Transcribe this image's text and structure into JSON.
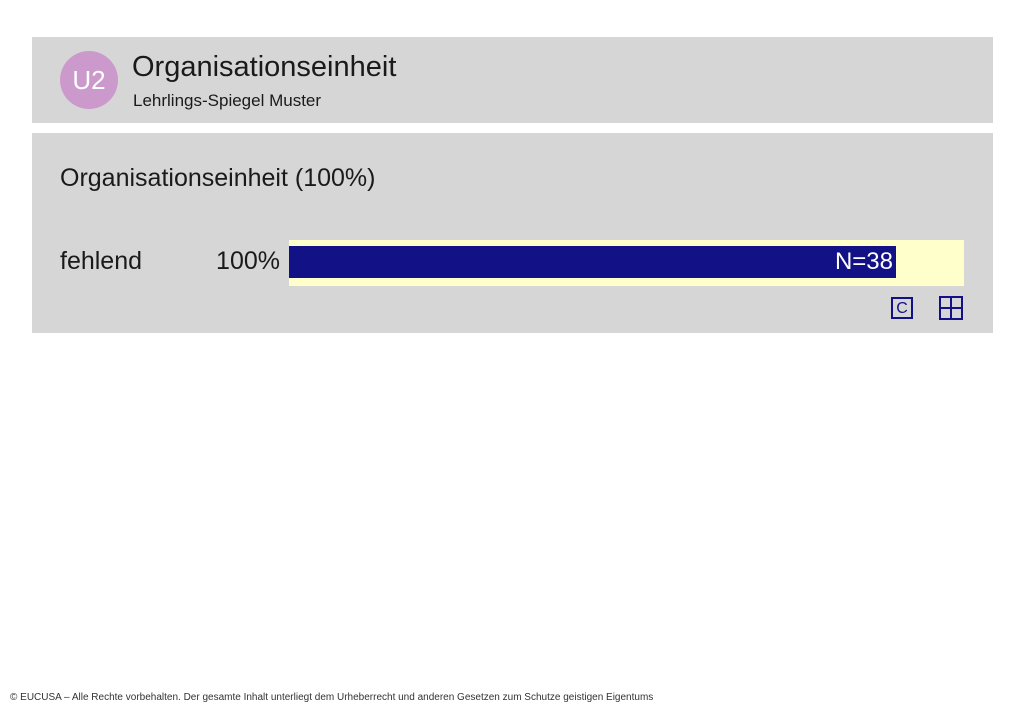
{
  "header": {
    "badge": "U2",
    "title": "Organisationseinheit",
    "subtitle": "Lehrlings-Spiegel Muster"
  },
  "chart_data": {
    "type": "bar",
    "title": "Organisationseinheit (100%)",
    "categories": [
      "fehlend"
    ],
    "series": [
      {
        "values": [
          100
        ]
      }
    ],
    "value_labels": [
      "100%"
    ],
    "bar_annotation": "N=38",
    "ylim": [
      0,
      100
    ],
    "colors": {
      "bar": "#121286",
      "track": "#ffffcc",
      "panel": "#d6d6d6",
      "badge": "#cc99cc"
    }
  },
  "icons": {
    "c_icon_label": "C",
    "grid_icon": "table-grid-icon"
  },
  "footer": {
    "text": "© EUCUSA – Alle Rechte vorbehalten. Der gesamte Inhalt unterliegt dem Urheberrecht und anderen Gesetzen zum Schutze geistigen Eigentums"
  }
}
